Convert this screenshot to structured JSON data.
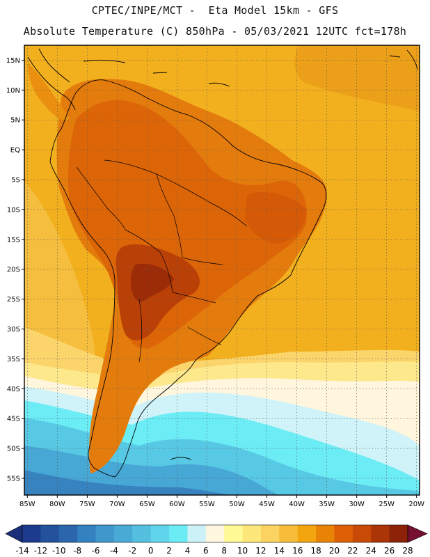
{
  "header": {
    "line1": "CPTEC/INPE/MCT -  Eta Model 15km - GFS",
    "line2": "Absolute Temperature (C) 850hPa - 05/03/2021 12UTC fct=178h"
  },
  "map": {
    "lat_labels": [
      "15N",
      "10N",
      "5N",
      "EQ",
      "5S",
      "10S",
      "15S",
      "20S",
      "25S",
      "30S",
      "35S",
      "40S",
      "45S",
      "50S",
      "55S"
    ],
    "lat_values": [
      15,
      10,
      5,
      0,
      -5,
      -10,
      -15,
      -20,
      -25,
      -30,
      -35,
      -40,
      -45,
      -50,
      -55
    ],
    "lon_labels": [
      "85W",
      "80W",
      "75W",
      "70W",
      "65W",
      "60W",
      "55W",
      "50W",
      "45W",
      "40W",
      "35W",
      "30W",
      "25W",
      "20W"
    ],
    "lon_values": [
      -85,
      -80,
      -75,
      -70,
      -65,
      -60,
      -55,
      -50,
      -45,
      -40,
      -35,
      -30,
      -25,
      -20
    ],
    "extent": {
      "lon_min": -85.5,
      "lon_max": -19.5,
      "lat_min": -57.8,
      "lat_max": 17.5
    },
    "gridlines": "dotted"
  },
  "colorbar": {
    "labels": [
      "-14",
      "-12",
      "-10",
      "-8",
      "-6",
      "-4",
      "-2",
      "0",
      "2",
      "4",
      "6",
      "8",
      "10",
      "12",
      "14",
      "16",
      "18",
      "20",
      "22",
      "24",
      "26",
      "28"
    ],
    "colors": [
      "#1c3b8c",
      "#23519c",
      "#2b66ad",
      "#3481bf",
      "#3f97cb",
      "#4aaad6",
      "#55bfe0",
      "#60d4ea",
      "#6bebf4",
      "#ccf2f7",
      "#fff6e0",
      "#fffa96",
      "#fde67a",
      "#fbd360",
      "#f6bc3a",
      "#f2a50e",
      "#e88305",
      "#de6006",
      "#c94a06",
      "#ab3506",
      "#8c2207"
    ],
    "low_end_color": "#1a2f7a",
    "high_end_color": "#761030"
  },
  "colors": {
    "sea_warm": "#f3ad1a",
    "land_hot": "#df6409",
    "land_very_hot": "#b43c06",
    "border_line": "#000000"
  }
}
